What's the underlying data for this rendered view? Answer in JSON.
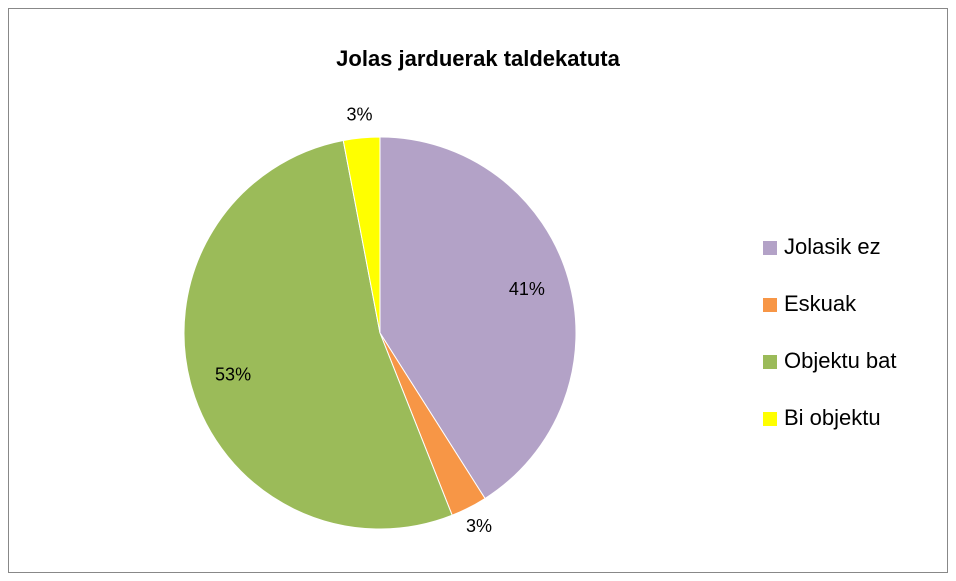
{
  "chart_data": {
    "type": "pie",
    "title": "Jolas jarduerak taldekatuta",
    "categories": [
      "Jolasik ez",
      "Eskuak",
      "Objektu bat",
      "Bi objektu"
    ],
    "values": [
      41,
      3,
      53,
      3
    ],
    "value_labels": [
      "41%",
      "3%",
      "53%",
      "3%"
    ],
    "colors": [
      "#b3a2c7",
      "#f79646",
      "#9bbb59",
      "#ffff00"
    ],
    "legend": "right"
  }
}
